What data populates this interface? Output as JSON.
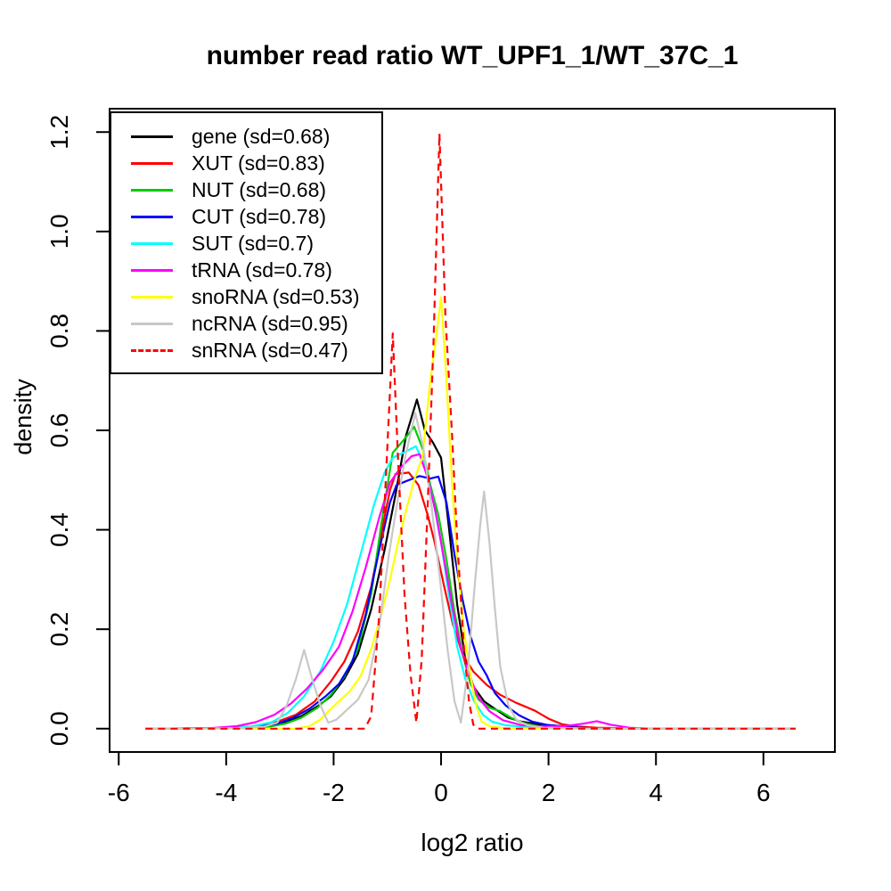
{
  "chart": {
    "title": "number read ratio WT_UPF1_1/WT_37C_1",
    "xlabel": "log2 ratio",
    "ylabel": "density"
  },
  "chart_data": {
    "type": "line",
    "title": "number read ratio WT_UPF1_1/WT_37C_1",
    "xlabel": "log2 ratio",
    "ylabel": "density",
    "grid": false,
    "legend_position": "topleft",
    "xlim": [
      -6.17,
      7.33
    ],
    "ylim": [
      -0.047,
      1.247
    ],
    "x_ticks": [
      {
        "value": -6,
        "label": "-6"
      },
      {
        "value": -4,
        "label": "-4"
      },
      {
        "value": -2,
        "label": "-2"
      },
      {
        "value": 0,
        "label": "0"
      },
      {
        "value": 2,
        "label": "2"
      },
      {
        "value": 4,
        "label": "4"
      },
      {
        "value": 6,
        "label": "6"
      }
    ],
    "y_ticks": [
      {
        "value": 0.0,
        "label": "0.0"
      },
      {
        "value": 0.2,
        "label": "0.2"
      },
      {
        "value": 0.4,
        "label": "0.4"
      },
      {
        "value": 0.6,
        "label": "0.6"
      },
      {
        "value": 0.8,
        "label": "0.8"
      },
      {
        "value": 1.0,
        "label": "1.0"
      },
      {
        "value": 1.2,
        "label": "1.2"
      }
    ],
    "series": [
      {
        "id": "gene",
        "name": "gene (sd=0.68)",
        "color": "#000000",
        "dashed": false,
        "points": [
          [
            -5.5,
            0
          ],
          [
            -4.2,
            0.001
          ],
          [
            -3.6,
            0.003
          ],
          [
            -3.2,
            0.006
          ],
          [
            -2.9,
            0.012
          ],
          [
            -2.6,
            0.025
          ],
          [
            -2.3,
            0.045
          ],
          [
            -2.05,
            0.065
          ],
          [
            -1.8,
            0.1
          ],
          [
            -1.55,
            0.15
          ],
          [
            -1.3,
            0.24
          ],
          [
            -1.05,
            0.36
          ],
          [
            -0.85,
            0.47
          ],
          [
            -0.65,
            0.59
          ],
          [
            -0.45,
            0.662
          ],
          [
            -0.3,
            0.6
          ],
          [
            -0.15,
            0.575
          ],
          [
            0,
            0.545
          ],
          [
            0.15,
            0.4
          ],
          [
            0.3,
            0.25
          ],
          [
            0.45,
            0.14
          ],
          [
            0.6,
            0.085
          ],
          [
            0.8,
            0.055
          ],
          [
            1,
            0.04
          ],
          [
            1.25,
            0.022
          ],
          [
            1.5,
            0.014
          ],
          [
            1.8,
            0.009
          ],
          [
            2.1,
            0.006
          ],
          [
            2.5,
            0.003
          ],
          [
            2.9,
            0.001
          ],
          [
            3.3,
            0
          ],
          [
            6.6,
            0
          ]
        ]
      },
      {
        "id": "XUT",
        "name": "XUT (sd=0.83)",
        "color": "#ff0000",
        "dashed": false,
        "points": [
          [
            -5.5,
            0
          ],
          [
            -4.1,
            0.001
          ],
          [
            -3.5,
            0.004
          ],
          [
            -3.1,
            0.012
          ],
          [
            -2.7,
            0.028
          ],
          [
            -2.35,
            0.055
          ],
          [
            -2.05,
            0.095
          ],
          [
            -1.8,
            0.135
          ],
          [
            -1.55,
            0.195
          ],
          [
            -1.3,
            0.285
          ],
          [
            -1.1,
            0.4
          ],
          [
            -0.95,
            0.48
          ],
          [
            -0.85,
            0.512
          ],
          [
            -0.6,
            0.515
          ],
          [
            -0.42,
            0.49
          ],
          [
            -0.25,
            0.43
          ],
          [
            -0.12,
            0.375
          ],
          [
            0.05,
            0.29
          ],
          [
            0.22,
            0.21
          ],
          [
            0.4,
            0.15
          ],
          [
            0.6,
            0.115
          ],
          [
            0.85,
            0.088
          ],
          [
            1.1,
            0.068
          ],
          [
            1.4,
            0.052
          ],
          [
            1.75,
            0.036
          ],
          [
            2,
            0.02
          ],
          [
            2.25,
            0.009
          ],
          [
            2.55,
            0.004
          ],
          [
            2.9,
            0.002
          ],
          [
            3.3,
            0.001
          ],
          [
            3.8,
            0
          ],
          [
            6.6,
            0
          ]
        ]
      },
      {
        "id": "NUT",
        "name": "NUT (sd=0.68)",
        "color": "#00cc00",
        "dashed": false,
        "points": [
          [
            -5.5,
            0
          ],
          [
            -3.7,
            0.001
          ],
          [
            -3.2,
            0.004
          ],
          [
            -2.9,
            0.01
          ],
          [
            -2.6,
            0.022
          ],
          [
            -2.3,
            0.042
          ],
          [
            -2.05,
            0.068
          ],
          [
            -1.8,
            0.105
          ],
          [
            -1.55,
            0.16
          ],
          [
            -1.3,
            0.27
          ],
          [
            -1.1,
            0.42
          ],
          [
            -0.9,
            0.555
          ],
          [
            -0.7,
            0.58
          ],
          [
            -0.5,
            0.607
          ],
          [
            -0.35,
            0.565
          ],
          [
            -0.2,
            0.49
          ],
          [
            -0.05,
            0.43
          ],
          [
            0.1,
            0.34
          ],
          [
            0.25,
            0.235
          ],
          [
            0.4,
            0.15
          ],
          [
            0.55,
            0.09
          ],
          [
            0.7,
            0.058
          ],
          [
            0.9,
            0.042
          ],
          [
            1.1,
            0.035
          ],
          [
            1.3,
            0.022
          ],
          [
            1.5,
            0.012
          ],
          [
            1.8,
            0.005
          ],
          [
            2.2,
            0.002
          ],
          [
            2.7,
            0.001
          ],
          [
            3.1,
            0
          ],
          [
            6.6,
            0
          ]
        ]
      },
      {
        "id": "CUT",
        "name": "CUT (sd=0.78)",
        "color": "#0000ff",
        "dashed": false,
        "points": [
          [
            -5.5,
            0
          ],
          [
            -3.9,
            0.001
          ],
          [
            -3.4,
            0.004
          ],
          [
            -3.05,
            0.01
          ],
          [
            -2.75,
            0.022
          ],
          [
            -2.45,
            0.04
          ],
          [
            -2.15,
            0.065
          ],
          [
            -1.9,
            0.09
          ],
          [
            -1.65,
            0.135
          ],
          [
            -1.4,
            0.23
          ],
          [
            -1.15,
            0.36
          ],
          [
            -0.95,
            0.455
          ],
          [
            -0.83,
            0.49
          ],
          [
            -0.6,
            0.5
          ],
          [
            -0.4,
            0.508
          ],
          [
            -0.2,
            0.503
          ],
          [
            -0.05,
            0.507
          ],
          [
            0.1,
            0.455
          ],
          [
            0.25,
            0.35
          ],
          [
            0.4,
            0.26
          ],
          [
            0.55,
            0.185
          ],
          [
            0.7,
            0.135
          ],
          [
            0.85,
            0.107
          ],
          [
            1,
            0.072
          ],
          [
            1.2,
            0.047
          ],
          [
            1.45,
            0.027
          ],
          [
            1.7,
            0.014
          ],
          [
            2,
            0.007
          ],
          [
            2.4,
            0.003
          ],
          [
            2.8,
            0.001
          ],
          [
            3.2,
            0
          ],
          [
            6.6,
            0
          ]
        ]
      },
      {
        "id": "SUT",
        "name": "SUT (sd=0.7)",
        "color": "#00ffff",
        "dashed": false,
        "points": [
          [
            -5.5,
            0
          ],
          [
            -4,
            0.001
          ],
          [
            -3.55,
            0.004
          ],
          [
            -3.15,
            0.013
          ],
          [
            -2.85,
            0.032
          ],
          [
            -2.55,
            0.065
          ],
          [
            -2.25,
            0.115
          ],
          [
            -2,
            0.175
          ],
          [
            -1.75,
            0.25
          ],
          [
            -1.5,
            0.35
          ],
          [
            -1.25,
            0.45
          ],
          [
            -1.05,
            0.515
          ],
          [
            -0.9,
            0.545
          ],
          [
            -0.7,
            0.555
          ],
          [
            -0.47,
            0.568
          ],
          [
            -0.3,
            0.53
          ],
          [
            -0.15,
            0.46
          ],
          [
            0,
            0.375
          ],
          [
            0.15,
            0.265
          ],
          [
            0.3,
            0.165
          ],
          [
            0.45,
            0.1
          ],
          [
            0.6,
            0.058
          ],
          [
            0.78,
            0.028
          ],
          [
            0.95,
            0.014
          ],
          [
            1.2,
            0.007
          ],
          [
            1.5,
            0.004
          ],
          [
            1.9,
            0.002
          ],
          [
            2.4,
            0.001
          ],
          [
            2.9,
            0
          ],
          [
            6.6,
            0
          ]
        ]
      },
      {
        "id": "tRNA",
        "name": "tRNA (sd=0.78)",
        "color": "#ff00ff",
        "dashed": false,
        "points": [
          [
            -5.5,
            0
          ],
          [
            -4.3,
            0.001
          ],
          [
            -3.8,
            0.005
          ],
          [
            -3.45,
            0.013
          ],
          [
            -3.1,
            0.028
          ],
          [
            -2.8,
            0.05
          ],
          [
            -2.5,
            0.08
          ],
          [
            -2.2,
            0.118
          ],
          [
            -1.9,
            0.165
          ],
          [
            -1.65,
            0.235
          ],
          [
            -1.4,
            0.325
          ],
          [
            -1.15,
            0.425
          ],
          [
            -0.95,
            0.495
          ],
          [
            -0.75,
            0.525
          ],
          [
            -0.55,
            0.548
          ],
          [
            -0.4,
            0.552
          ],
          [
            -0.25,
            0.505
          ],
          [
            -0.1,
            0.435
          ],
          [
            0.05,
            0.345
          ],
          [
            0.2,
            0.25
          ],
          [
            0.35,
            0.17
          ],
          [
            0.52,
            0.108
          ],
          [
            0.7,
            0.062
          ],
          [
            0.9,
            0.035
          ],
          [
            1.15,
            0.017
          ],
          [
            1.5,
            0.007
          ],
          [
            1.9,
            0.004
          ],
          [
            2.3,
            0.005
          ],
          [
            2.65,
            0.01
          ],
          [
            2.9,
            0.015
          ],
          [
            3.15,
            0.008
          ],
          [
            3.5,
            0.002
          ],
          [
            3.9,
            0
          ],
          [
            6.6,
            0
          ]
        ]
      },
      {
        "id": "snoRNA",
        "name": "snoRNA (sd=0.53)",
        "color": "#ffff00",
        "dashed": false,
        "points": [
          [
            -5.5,
            0
          ],
          [
            -2.7,
            0
          ],
          [
            -2.45,
            0.005
          ],
          [
            -2.25,
            0.018
          ],
          [
            -2.05,
            0.04
          ],
          [
            -1.9,
            0.055
          ],
          [
            -1.7,
            0.075
          ],
          [
            -1.5,
            0.105
          ],
          [
            -1.3,
            0.16
          ],
          [
            -1.1,
            0.235
          ],
          [
            -0.95,
            0.3
          ],
          [
            -0.8,
            0.375
          ],
          [
            -0.65,
            0.44
          ],
          [
            -0.5,
            0.5
          ],
          [
            -0.35,
            0.545
          ],
          [
            -0.2,
            0.7
          ],
          [
            -0.1,
            0.78
          ],
          [
            0,
            0.868
          ],
          [
            0.1,
            0.7
          ],
          [
            0.2,
            0.5
          ],
          [
            0.3,
            0.345
          ],
          [
            0.42,
            0.2
          ],
          [
            0.55,
            0.105
          ],
          [
            0.65,
            0.048
          ],
          [
            0.75,
            0.015
          ],
          [
            0.9,
            0.005
          ],
          [
            1.1,
            0.002
          ],
          [
            1.4,
            0
          ],
          [
            6.6,
            0
          ]
        ]
      },
      {
        "id": "ncRNA",
        "name": "ncRNA (sd=0.95)",
        "color": "#c8c8c8",
        "dashed": false,
        "points": [
          [
            -5.5,
            0
          ],
          [
            -3.7,
            0.001
          ],
          [
            -3.3,
            0.004
          ],
          [
            -3.05,
            0.012
          ],
          [
            -2.88,
            0.045
          ],
          [
            -2.7,
            0.1
          ],
          [
            -2.55,
            0.158
          ],
          [
            -2.4,
            0.1
          ],
          [
            -2.25,
            0.048
          ],
          [
            -2.1,
            0.012
          ],
          [
            -1.95,
            0.018
          ],
          [
            -1.75,
            0.038
          ],
          [
            -1.55,
            0.058
          ],
          [
            -1.35,
            0.098
          ],
          [
            -1.15,
            0.205
          ],
          [
            -0.97,
            0.35
          ],
          [
            -0.8,
            0.465
          ],
          [
            -0.65,
            0.555
          ],
          [
            -0.48,
            0.635
          ],
          [
            -0.33,
            0.565
          ],
          [
            -0.18,
            0.45
          ],
          [
            -0.03,
            0.31
          ],
          [
            0.12,
            0.16
          ],
          [
            0.25,
            0.055
          ],
          [
            0.37,
            0.012
          ],
          [
            0.5,
            0.12
          ],
          [
            0.62,
            0.28
          ],
          [
            0.73,
            0.41
          ],
          [
            0.8,
            0.477
          ],
          [
            0.9,
            0.375
          ],
          [
            1,
            0.245
          ],
          [
            1.1,
            0.125
          ],
          [
            1.25,
            0.048
          ],
          [
            1.4,
            0.018
          ],
          [
            1.6,
            0.007
          ],
          [
            1.9,
            0.002
          ],
          [
            2.4,
            0.001
          ],
          [
            2.9,
            0
          ],
          [
            6.6,
            0
          ]
        ]
      },
      {
        "id": "snRNA",
        "name": "snRNA (sd=0.47)",
        "color": "#ff0000",
        "dashed": true,
        "points": [
          [
            -5.5,
            0
          ],
          [
            -1.42,
            0
          ],
          [
            -1.3,
            0.025
          ],
          [
            -1.15,
            0.23
          ],
          [
            -1.02,
            0.52
          ],
          [
            -0.9,
            0.795
          ],
          [
            -0.8,
            0.54
          ],
          [
            -0.68,
            0.27
          ],
          [
            -0.57,
            0.11
          ],
          [
            -0.46,
            0.012
          ],
          [
            -0.36,
            0.14
          ],
          [
            -0.26,
            0.42
          ],
          [
            -0.14,
            0.78
          ],
          [
            -0.03,
            1.197
          ],
          [
            0.08,
            0.83
          ],
          [
            0.2,
            0.6
          ],
          [
            0.3,
            0.38
          ],
          [
            0.42,
            0.17
          ],
          [
            0.52,
            0.055
          ],
          [
            0.6,
            0.008
          ],
          [
            0.68,
            0
          ],
          [
            6.6,
            0
          ]
        ]
      }
    ]
  }
}
